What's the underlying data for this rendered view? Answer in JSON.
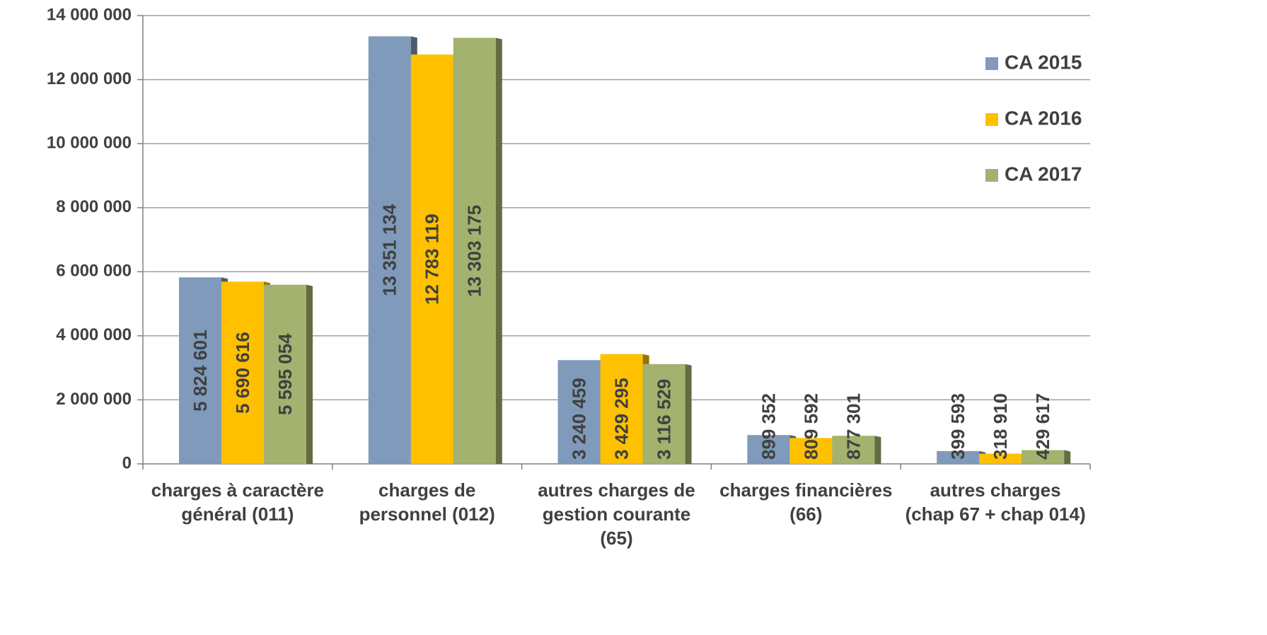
{
  "chart_data": {
    "type": "bar",
    "categories": [
      "charges à caractère général (011)",
      "charges de personnel (012)",
      "autres charges de gestion courante (65)",
      "charges financières (66)",
      "autres charges (chap 67 + chap 014)"
    ],
    "series": [
      {
        "name": "CA 2015",
        "color": "#7f9aba",
        "values": [
          5824601,
          13351134,
          3240459,
          899352,
          399593
        ],
        "value_labels": [
          "5 824 601",
          "13 351 134",
          "3 240 459",
          "899 352",
          "399 593"
        ]
      },
      {
        "name": "CA 2016",
        "color": "#ffc000",
        "values": [
          5690616,
          12783119,
          3429295,
          809592,
          318910
        ],
        "value_labels": [
          "5 690 616",
          "12 783 119",
          "3 429 295",
          "809 592",
          "318 910"
        ]
      },
      {
        "name": "CA 2017",
        "color": "#a3b26e",
        "values": [
          5595054,
          13303175,
          3116529,
          877301,
          429617
        ],
        "value_labels": [
          "5 595 054",
          "13 303 175",
          "3 116 529",
          "877 301",
          "429 617"
        ]
      }
    ],
    "ylim": [
      0,
      14000000
    ],
    "yticks": [
      {
        "value": 0,
        "label": "0"
      },
      {
        "value": 2000000,
        "label": "2 000 000"
      },
      {
        "value": 4000000,
        "label": "4 000 000"
      },
      {
        "value": 6000000,
        "label": "6 000 000"
      },
      {
        "value": 8000000,
        "label": "8 000 000"
      },
      {
        "value": 10000000,
        "label": "10 000 000"
      },
      {
        "value": 12000000,
        "label": "12 000 000"
      },
      {
        "value": 14000000,
        "label": "14 000 000"
      }
    ],
    "grid": true,
    "legend": "right"
  }
}
